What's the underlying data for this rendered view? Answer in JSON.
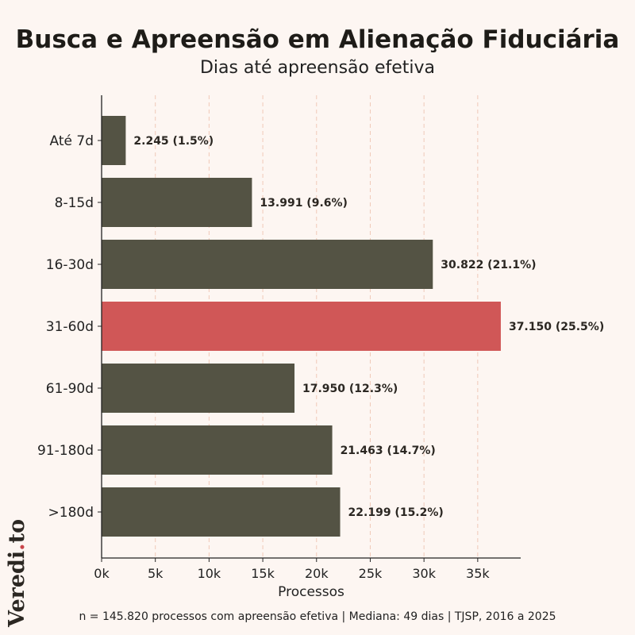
{
  "chart_data": {
    "type": "bar",
    "orientation": "horizontal",
    "title": "Busca e Apreensão em Alienação Fiduciária",
    "subtitle": "Dias até apreensão efetiva",
    "categories": [
      "Até 7d",
      "8-15d",
      "16-30d",
      "31-60d",
      "61-90d",
      "91-180d",
      ">180d"
    ],
    "values": [
      2245,
      13991,
      30822,
      37150,
      17950,
      21463,
      22199
    ],
    "data_labels": [
      "2.245 (1.5%)",
      "13.991 (9.6%)",
      "30.822 (21.1%)",
      "37.150 (25.5%)",
      "17.950 (12.3%)",
      "21.463 (14.7%)",
      "22.199 (15.2%)"
    ],
    "highlight_index": 3,
    "xlabel": "Processos",
    "ylabel": "",
    "xlim": [
      0,
      39000
    ],
    "xticks": [
      0,
      5000,
      10000,
      15000,
      20000,
      25000,
      30000,
      35000
    ],
    "xtick_labels": [
      "0k",
      "5k",
      "10k",
      "15k",
      "20k",
      "25k",
      "30k",
      "35k"
    ],
    "grid": "vertical dashed",
    "colors": {
      "bar": "#545344",
      "highlight": "#d05757",
      "grid": "#f0c9b8",
      "background": "#fdf6f2"
    }
  },
  "footer": "n = 145.820 processos com apreensão efetiva | Mediana: 49 dias | TJSP, 2016 a 2025",
  "logo": {
    "text": "Veredi",
    "dot": ".",
    "suffix": "to"
  }
}
